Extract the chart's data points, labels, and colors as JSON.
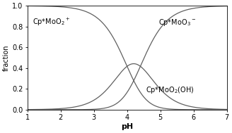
{
  "title": "",
  "xlabel": "pH",
  "ylabel": "fraction",
  "xlim": [
    1,
    7
  ],
  "ylim": [
    0,
    1
  ],
  "xticks": [
    1,
    2,
    3,
    4,
    5,
    6,
    7
  ],
  "yticks": [
    0,
    0.2,
    0.4,
    0.6,
    0.8,
    1.0
  ],
  "pKa1": 4.0,
  "pKa2": 4.4,
  "label_positions": {
    "species1": [
      1.15,
      0.82
    ],
    "species2": [
      4.55,
      0.17
    ],
    "species3": [
      4.95,
      0.82
    ]
  },
  "line_color": "#606060",
  "background_color": "#ffffff",
  "fontsize_xlabel": 8,
  "fontsize_ylabel": 7,
  "fontsize_ticks": 7,
  "fontsize_annotations": 7
}
